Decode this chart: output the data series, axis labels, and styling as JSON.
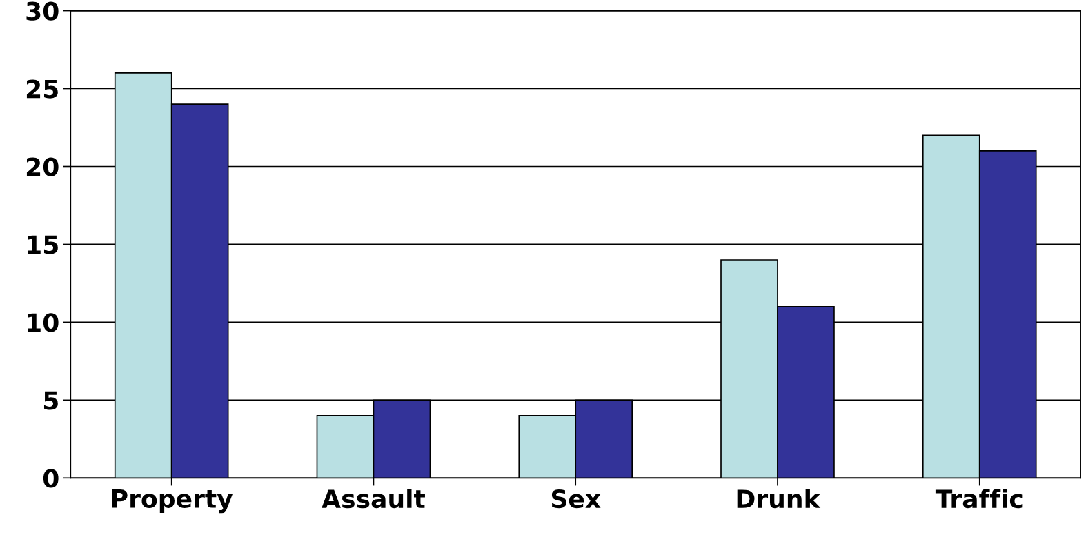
{
  "chart_data": {
    "type": "bar",
    "categories": [
      "Property",
      "Assault",
      "Sex",
      "Drunk",
      "Traffic"
    ],
    "series": [
      {
        "color": "#b9e0e3",
        "values": [
          26,
          4,
          4,
          14,
          22
        ]
      },
      {
        "color": "#333399",
        "values": [
          24,
          5,
          5,
          11,
          21
        ]
      }
    ],
    "ylim": [
      0,
      30
    ],
    "yticks": [
      0,
      5,
      10,
      15,
      20,
      25,
      30
    ],
    "grid": "y",
    "legend": false
  }
}
